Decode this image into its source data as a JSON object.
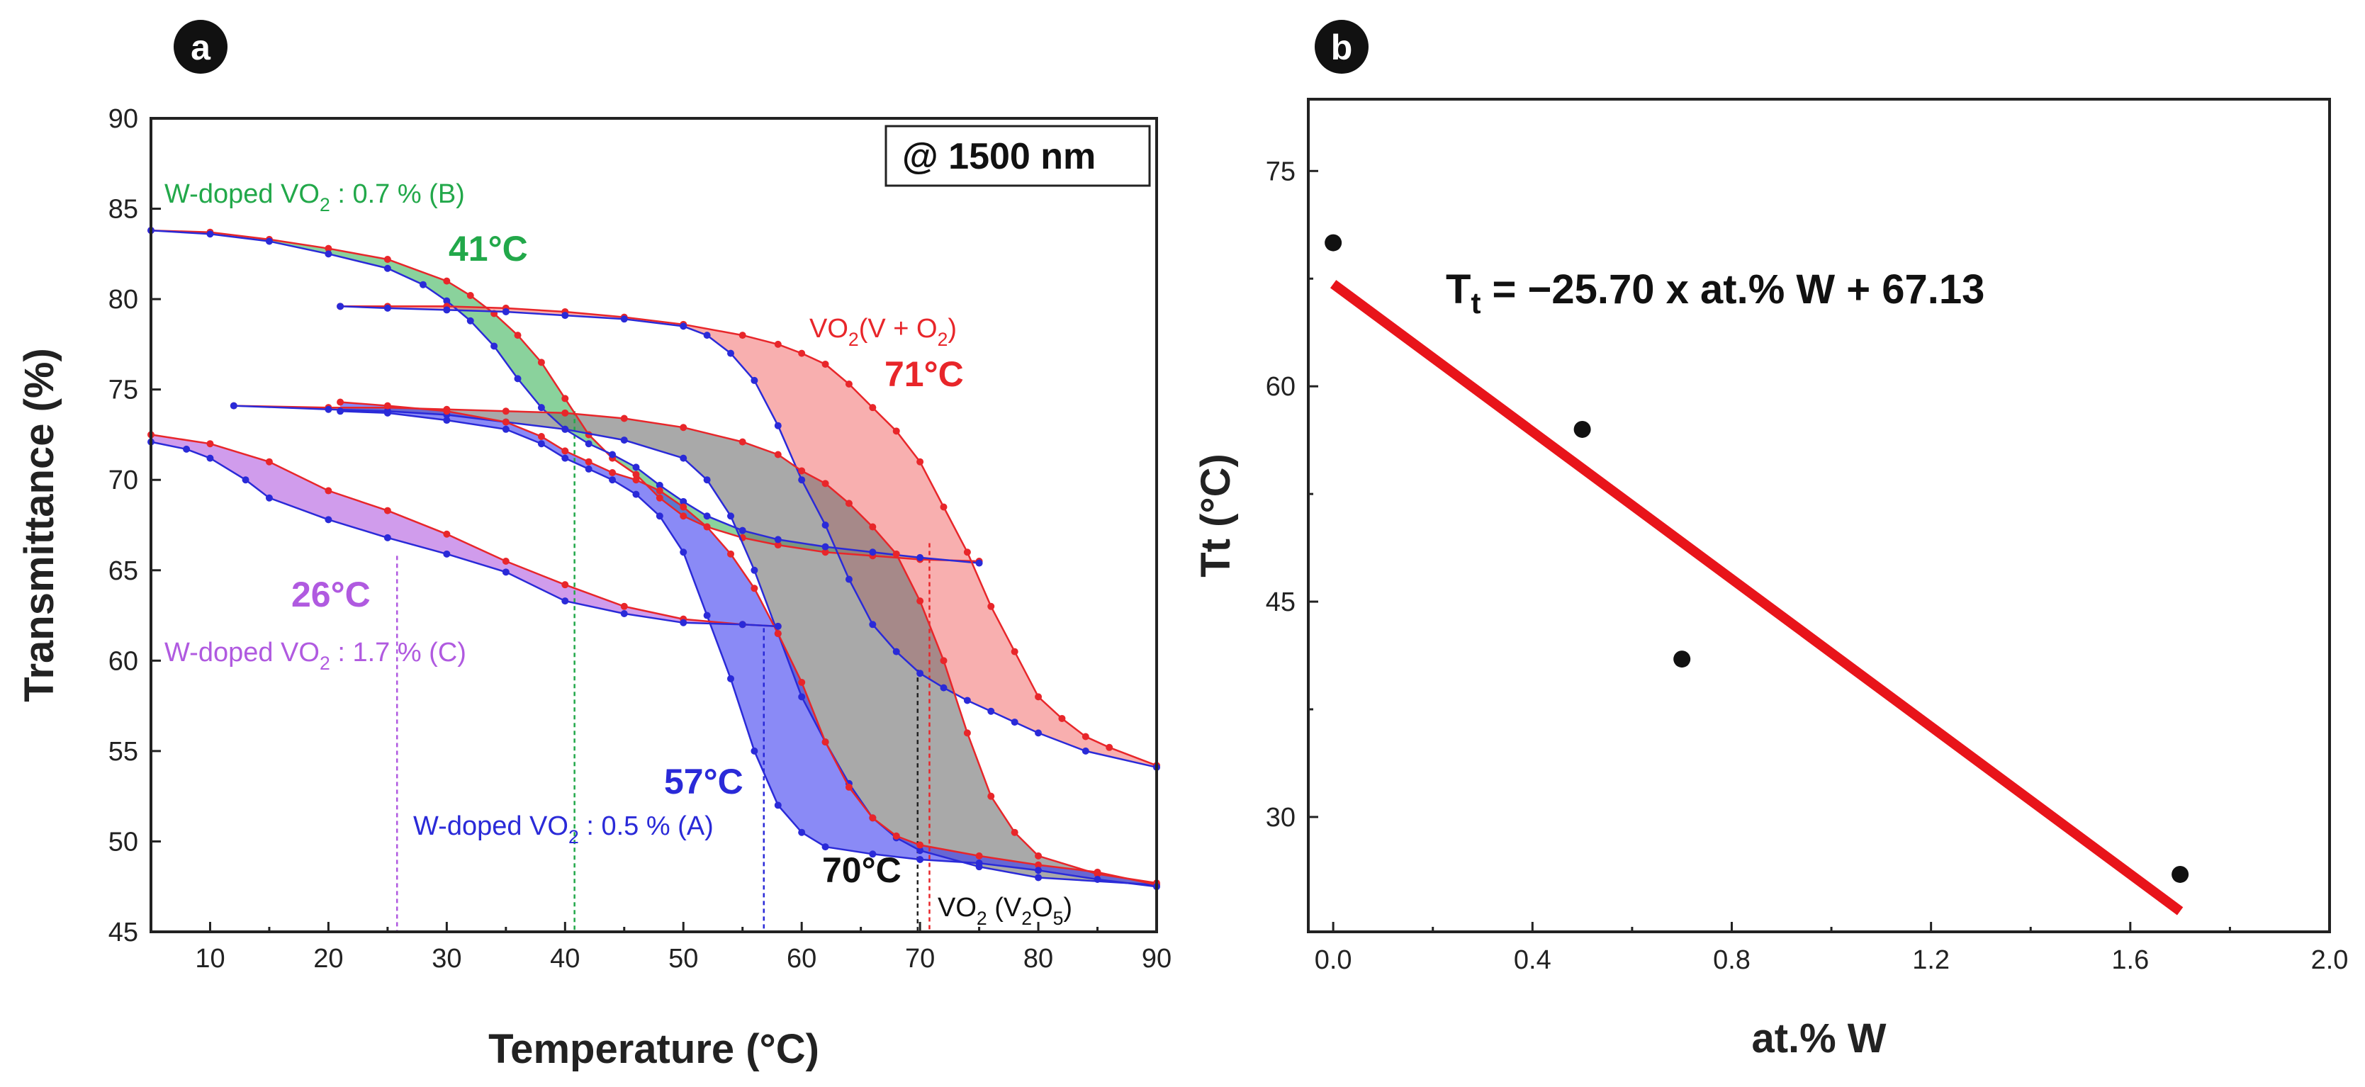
{
  "chart_data": [
    {
      "panel": "a",
      "type": "line",
      "xlabel": "Temperature (°C)",
      "ylabel": "Transmittance (%)",
      "xlim": [
        5,
        90
      ],
      "ylim": [
        45,
        90
      ],
      "xticks": [
        10,
        20,
        30,
        40,
        50,
        60,
        70,
        80,
        90
      ],
      "yticks": [
        45,
        50,
        55,
        60,
        65,
        70,
        75,
        80,
        85,
        90
      ],
      "box_label": "@ 1500 nm",
      "hysteresis": [
        {
          "id": "B",
          "color": "#22a84a",
          "fill": "#3cb45a",
          "heating": [
            [
              5,
              83.8
            ],
            [
              10,
              83.7
            ],
            [
              15,
              83.3
            ],
            [
              20,
              82.8
            ],
            [
              25,
              82.2
            ],
            [
              30,
              81.0
            ],
            [
              32,
              80.2
            ],
            [
              34,
              79.2
            ],
            [
              36,
              78.0
            ],
            [
              38,
              76.5
            ],
            [
              40,
              74.5
            ],
            [
              42,
              72.5
            ],
            [
              44,
              71.2
            ],
            [
              46,
              70.3
            ],
            [
              48,
              69.0
            ],
            [
              50,
              68.0
            ],
            [
              52,
              67.4
            ],
            [
              55,
              66.8
            ],
            [
              58,
              66.4
            ],
            [
              62,
              66.0
            ],
            [
              66,
              65.8
            ],
            [
              70,
              65.6
            ],
            [
              75,
              65.5
            ]
          ],
          "cooling": [
            [
              5,
              83.8
            ],
            [
              10,
              83.6
            ],
            [
              15,
              83.2
            ],
            [
              20,
              82.5
            ],
            [
              25,
              81.7
            ],
            [
              28,
              80.8
            ],
            [
              30,
              79.9
            ],
            [
              32,
              78.8
            ],
            [
              34,
              77.4
            ],
            [
              36,
              75.6
            ],
            [
              38,
              74.0
            ],
            [
              40,
              72.8
            ],
            [
              42,
              72.0
            ],
            [
              44,
              71.4
            ],
            [
              46,
              70.7
            ],
            [
              48,
              69.7
            ],
            [
              50,
              68.8
            ],
            [
              52,
              68.0
            ],
            [
              55,
              67.2
            ],
            [
              58,
              66.7
            ],
            [
              62,
              66.3
            ],
            [
              66,
              66.0
            ],
            [
              70,
              65.7
            ],
            [
              75,
              65.4
            ]
          ]
        },
        {
          "id": "V+O2",
          "color": "#e8262a",
          "fill": "#f47a7a",
          "heating": [
            [
              21,
              79.6
            ],
            [
              25,
              79.6
            ],
            [
              30,
              79.6
            ],
            [
              35,
              79.5
            ],
            [
              40,
              79.3
            ],
            [
              45,
              79.0
            ],
            [
              50,
              78.6
            ],
            [
              55,
              78.0
            ],
            [
              58,
              77.5
            ],
            [
              60,
              77.0
            ],
            [
              62,
              76.4
            ],
            [
              64,
              75.3
            ],
            [
              66,
              74.0
            ],
            [
              68,
              72.7
            ],
            [
              70,
              71.0
            ],
            [
              72,
              68.5
            ],
            [
              74,
              66.0
            ],
            [
              76,
              63.0
            ],
            [
              78,
              60.5
            ],
            [
              80,
              58.0
            ],
            [
              82,
              56.8
            ],
            [
              84,
              55.8
            ],
            [
              86,
              55.2
            ],
            [
              90,
              54.2
            ]
          ],
          "cooling": [
            [
              21,
              79.6
            ],
            [
              25,
              79.5
            ],
            [
              30,
              79.4
            ],
            [
              35,
              79.3
            ],
            [
              40,
              79.1
            ],
            [
              45,
              78.9
            ],
            [
              50,
              78.5
            ],
            [
              52,
              78.0
            ],
            [
              54,
              77.0
            ],
            [
              56,
              75.5
            ],
            [
              58,
              73.0
            ],
            [
              60,
              70.0
            ],
            [
              62,
              67.5
            ],
            [
              64,
              64.5
            ],
            [
              66,
              62.0
            ],
            [
              68,
              60.5
            ],
            [
              70,
              59.3
            ],
            [
              72,
              58.5
            ],
            [
              74,
              57.8
            ],
            [
              76,
              57.2
            ],
            [
              78,
              56.6
            ],
            [
              80,
              56.0
            ],
            [
              84,
              55.0
            ],
            [
              90,
              54.1
            ]
          ]
        },
        {
          "id": "V2O5",
          "color": "#4a4a4a",
          "fill": "#707070",
          "heating": [
            [
              12,
              74.1
            ],
            [
              20,
              74.0
            ],
            [
              25,
              74.0
            ],
            [
              30,
              73.9
            ],
            [
              35,
              73.8
            ],
            [
              40,
              73.7
            ],
            [
              45,
              73.4
            ],
            [
              50,
              72.9
            ],
            [
              55,
              72.1
            ],
            [
              58,
              71.4
            ],
            [
              60,
              70.5
            ],
            [
              62,
              69.8
            ],
            [
              64,
              68.7
            ],
            [
              66,
              67.4
            ],
            [
              68,
              65.9
            ],
            [
              70,
              63.3
            ],
            [
              72,
              60.0
            ],
            [
              74,
              56.0
            ],
            [
              76,
              52.5
            ],
            [
              78,
              50.5
            ],
            [
              80,
              49.2
            ],
            [
              85,
              48.2
            ],
            [
              90,
              47.7
            ]
          ],
          "cooling": [
            [
              12,
              74.1
            ],
            [
              20,
              73.9
            ],
            [
              25,
              73.8
            ],
            [
              30,
              73.6
            ],
            [
              35,
              73.2
            ],
            [
              40,
              72.8
            ],
            [
              45,
              72.2
            ],
            [
              50,
              71.2
            ],
            [
              52,
              70.0
            ],
            [
              54,
              68.0
            ],
            [
              56,
              65.0
            ],
            [
              58,
              61.5
            ],
            [
              60,
              58.0
            ],
            [
              62,
              55.5
            ],
            [
              64,
              53.2
            ],
            [
              66,
              51.3
            ],
            [
              68,
              50.2
            ],
            [
              70,
              49.5
            ],
            [
              75,
              48.6
            ],
            [
              80,
              48.0
            ],
            [
              90,
              47.6
            ]
          ]
        },
        {
          "id": "A",
          "color": "#2a2ad8",
          "fill": "#3c3cf0",
          "heating": [
            [
              21,
              74.3
            ],
            [
              25,
              74.1
            ],
            [
              30,
              73.8
            ],
            [
              35,
              73.2
            ],
            [
              38,
              72.4
            ],
            [
              40,
              71.6
            ],
            [
              42,
              71.0
            ],
            [
              44,
              70.4
            ],
            [
              46,
              70.0
            ],
            [
              48,
              69.4
            ],
            [
              50,
              68.5
            ],
            [
              52,
              67.4
            ],
            [
              54,
              65.9
            ],
            [
              56,
              64.0
            ],
            [
              58,
              61.5
            ],
            [
              60,
              58.8
            ],
            [
              62,
              55.5
            ],
            [
              64,
              53.0
            ],
            [
              66,
              51.3
            ],
            [
              68,
              50.3
            ],
            [
              70,
              49.8
            ],
            [
              75,
              49.2
            ],
            [
              80,
              48.7
            ],
            [
              85,
              48.3
            ],
            [
              90,
              47.6
            ]
          ],
          "cooling": [
            [
              21,
              73.8
            ],
            [
              25,
              73.7
            ],
            [
              30,
              73.3
            ],
            [
              35,
              72.8
            ],
            [
              38,
              72.0
            ],
            [
              40,
              71.2
            ],
            [
              42,
              70.6
            ],
            [
              44,
              70.0
            ],
            [
              46,
              69.2
            ],
            [
              48,
              68.0
            ],
            [
              50,
              66.0
            ],
            [
              52,
              62.5
            ],
            [
              54,
              59.0
            ],
            [
              56,
              55.0
            ],
            [
              58,
              52.0
            ],
            [
              60,
              50.5
            ],
            [
              62,
              49.7
            ],
            [
              66,
              49.3
            ],
            [
              70,
              49.0
            ],
            [
              75,
              48.8
            ],
            [
              80,
              48.4
            ],
            [
              85,
              47.9
            ],
            [
              90,
              47.5
            ]
          ]
        },
        {
          "id": "C",
          "color": "#9a3fd0",
          "fill": "#b05ae0",
          "heating": [
            [
              5,
              72.5
            ],
            [
              10,
              72.0
            ],
            [
              15,
              71.0
            ],
            [
              20,
              69.4
            ],
            [
              25,
              68.3
            ],
            [
              30,
              67.0
            ],
            [
              35,
              65.5
            ],
            [
              40,
              64.2
            ],
            [
              45,
              63.0
            ],
            [
              50,
              62.3
            ],
            [
              55,
              62.0
            ],
            [
              58,
              61.9
            ]
          ],
          "cooling": [
            [
              5,
              72.1
            ],
            [
              8,
              71.7
            ],
            [
              10,
              71.2
            ],
            [
              13,
              70.0
            ],
            [
              15,
              69.0
            ],
            [
              20,
              67.8
            ],
            [
              25,
              66.8
            ],
            [
              30,
              65.9
            ],
            [
              35,
              64.9
            ],
            [
              40,
              63.3
            ],
            [
              45,
              62.6
            ],
            [
              50,
              62.1
            ],
            [
              55,
              62.0
            ],
            [
              58,
              61.9
            ]
          ]
        }
      ],
      "transition_lines": [
        {
          "x": 25.8,
          "color": "#b05ae0"
        },
        {
          "x": 40.8,
          "color": "#22a84a"
        },
        {
          "x": 56.8,
          "color": "#2a2ad8"
        },
        {
          "x": 69.8,
          "color": "#222222"
        },
        {
          "x": 70.8,
          "color": "#e8262a"
        }
      ],
      "annotations": {
        "b_label_pre": "W-doped VO",
        "b_label_sub": "2",
        "b_label_post": " : 0.7 % (B)",
        "b_temp": "41°C",
        "vo2_label_pre": "VO",
        "vo2_label_sub": "2",
        "vo2_label_mid": "(V + O",
        "vo2_label_sub2": "2",
        "vo2_label_post": ")",
        "red_temp": "71°C",
        "c_temp": "26°C",
        "c_label_pre": "W-doped VO",
        "c_label_sub": "2",
        "c_label_post": " : 1.7 % (C)",
        "a_temp": "57°C",
        "a_label_pre": "W-doped VO",
        "a_label_sub": "2",
        "a_label_post": " : 0.5 % (A)",
        "gray_temp": "70°C",
        "v2o5_label_pre": "VO",
        "v2o5_label_sub": "2",
        "v2o5_label_mid": " (V",
        "v2o5_label_sub2": "2",
        "v2o5_label_mid2": "O",
        "v2o5_label_sub3": "5",
        "v2o5_label_post": ")"
      }
    },
    {
      "panel": "b",
      "type": "scatter",
      "xlabel": "at.% W",
      "ylabel": "Tt (°C)",
      "xlim": [
        -0.05,
        2.0
      ],
      "ylim": [
        22,
        80
      ],
      "xticks": [
        "0.0",
        "0.4",
        "0.8",
        "1.2",
        "1.6",
        "2.0"
      ],
      "yticks": [
        30,
        45,
        60,
        75
      ],
      "points": [
        {
          "x": 0.0,
          "y": 70
        },
        {
          "x": 0.5,
          "y": 57
        },
        {
          "x": 0.7,
          "y": 41
        },
        {
          "x": 1.7,
          "y": 26
        }
      ],
      "fit": {
        "slope": -25.7,
        "intercept": 67.13,
        "x_range": [
          0.0,
          1.7
        ],
        "color": "#e8141a"
      },
      "equation_main": "T",
      "equation_sub": "t",
      "equation_rest": " = −25.70 x at.% W + 67.13"
    }
  ]
}
